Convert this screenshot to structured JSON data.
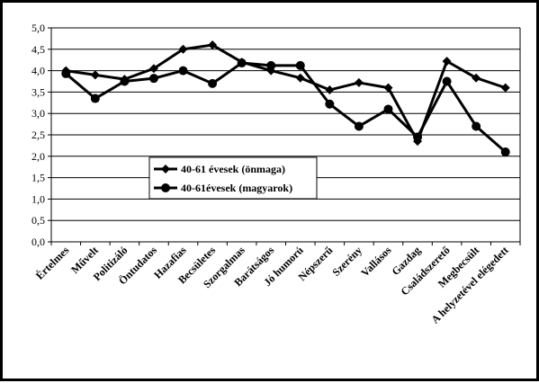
{
  "chart_data": {
    "type": "line",
    "categories": [
      "Értelmes",
      "Művelt",
      "Politizáló",
      "Öntudatos",
      "Hazafias",
      "Becsületes",
      "Szorgalmas",
      "Barátságos",
      "Jó humorú",
      "Népszerű",
      "Szerény",
      "Vallásos",
      "Gazdag",
      "Családszerető",
      "Megbecsült",
      "A helyzetével elégedett"
    ],
    "series": [
      {
        "name": "40-61 évesek (önmaga)",
        "marker": "diamond",
        "values": [
          4.0,
          3.9,
          3.8,
          4.05,
          4.5,
          4.6,
          4.2,
          4.0,
          3.83,
          3.55,
          3.72,
          3.6,
          2.35,
          4.22,
          3.83,
          3.6
        ]
      },
      {
        "name": "40-61évesek (magyarok)",
        "marker": "circle",
        "values": [
          3.93,
          3.35,
          3.75,
          3.82,
          4.0,
          3.7,
          4.18,
          4.12,
          4.12,
          3.22,
          2.7,
          3.1,
          2.45,
          3.75,
          2.7,
          2.1
        ]
      }
    ],
    "ylim": [
      0,
      5
    ],
    "ytick_labels": [
      "0,0",
      "0,5",
      "1,0",
      "1,5",
      "2,0",
      "2,5",
      "3,0",
      "3,5",
      "4,0",
      "4,5",
      "5,0"
    ],
    "grid": true,
    "legend": "center-left",
    "line_color": "#000000"
  }
}
